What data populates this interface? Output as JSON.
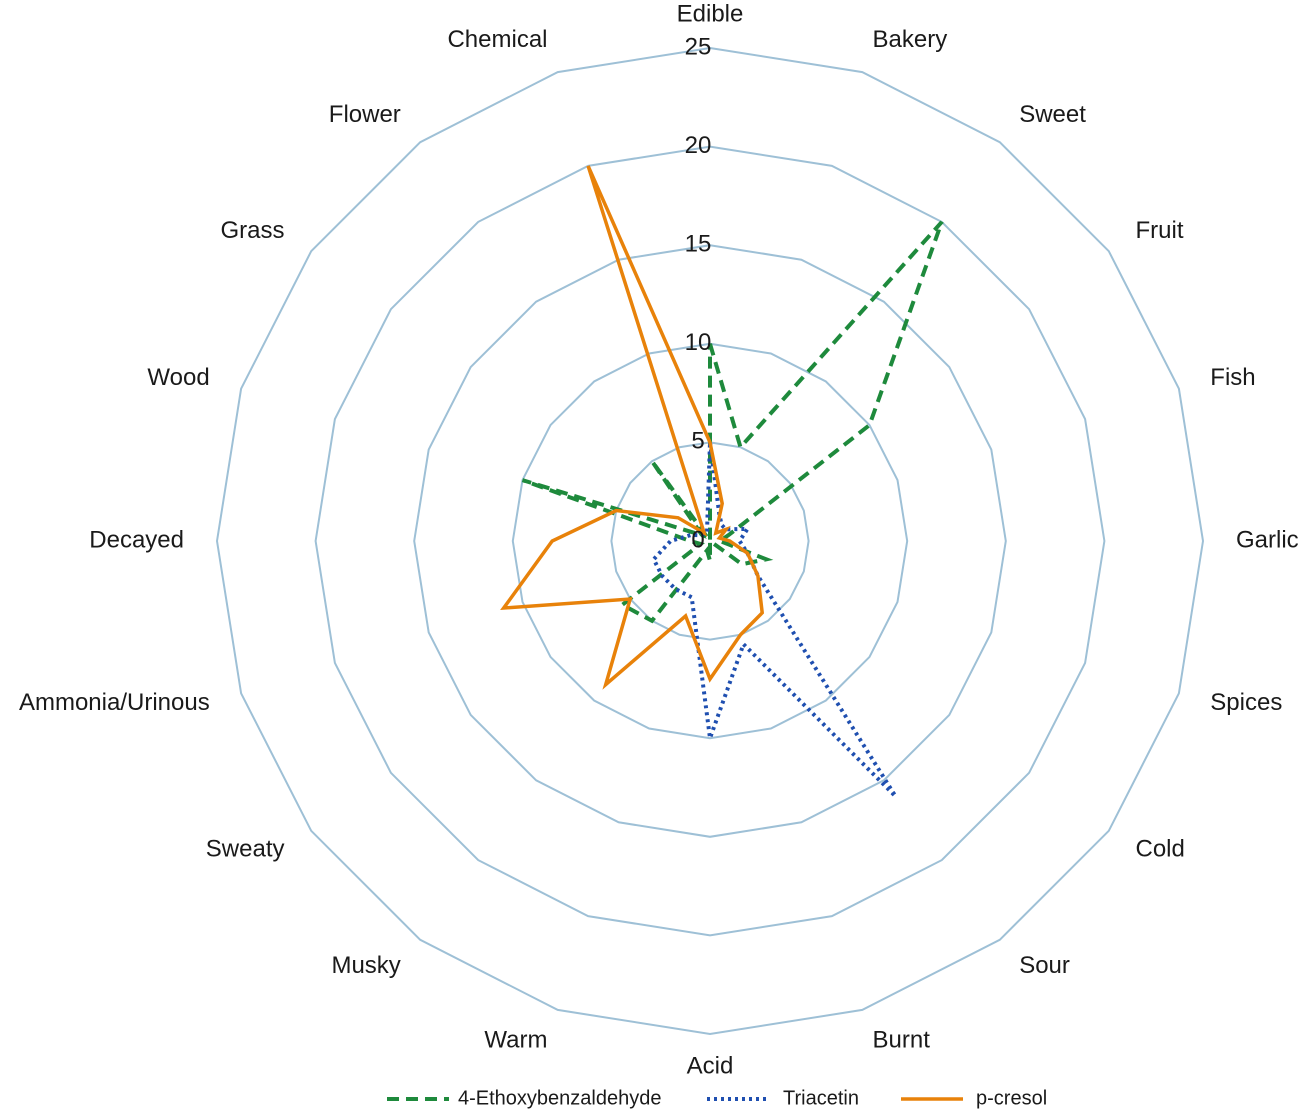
{
  "chart_data": {
    "type": "radar",
    "title": "",
    "axis_ticks": [
      "0",
      "5",
      "10",
      "15",
      "20",
      "25"
    ],
    "rmax": 25,
    "rstep": 5,
    "grid": true,
    "legend_position": "bottom",
    "categories": [
      "Edible",
      "Bakery",
      "Sweet",
      "Fruit",
      "Fish",
      "Garlic",
      "Spices",
      "Cold",
      "Sour",
      "Burnt",
      "Acid",
      "Warm",
      "Musky",
      "Sweaty",
      "Ammonia/Urinous",
      "Decayed",
      "Wood",
      "Grass",
      "Flower",
      "Chemical"
    ],
    "series": [
      {
        "name": "4-Ethoxybenzaldehyde",
        "color": "#1e8a3c",
        "dash": "dashed",
        "values": [
          10,
          5,
          20,
          10,
          1,
          0.5,
          3,
          2,
          0,
          0,
          1,
          0.5,
          5,
          5.5,
          0.5,
          1,
          10,
          0.5,
          5,
          0
        ]
      },
      {
        "name": "Triacetin",
        "color": "#1f4fb0",
        "dash": "dotted",
        "values": [
          5,
          1.5,
          1,
          1,
          2,
          1.5,
          2,
          3,
          16,
          5.5,
          10,
          3,
          3,
          3,
          3,
          2,
          1,
          0.5,
          0.5,
          0.5
        ]
      },
      {
        "name": "p-cresol",
        "color": "#e8820a",
        "dash": "solid",
        "values": [
          5,
          2,
          0.5,
          1,
          0.5,
          1,
          2,
          3,
          4.5,
          5,
          7,
          4,
          9,
          5,
          11,
          8,
          5,
          2,
          0.5,
          20
        ]
      }
    ]
  }
}
